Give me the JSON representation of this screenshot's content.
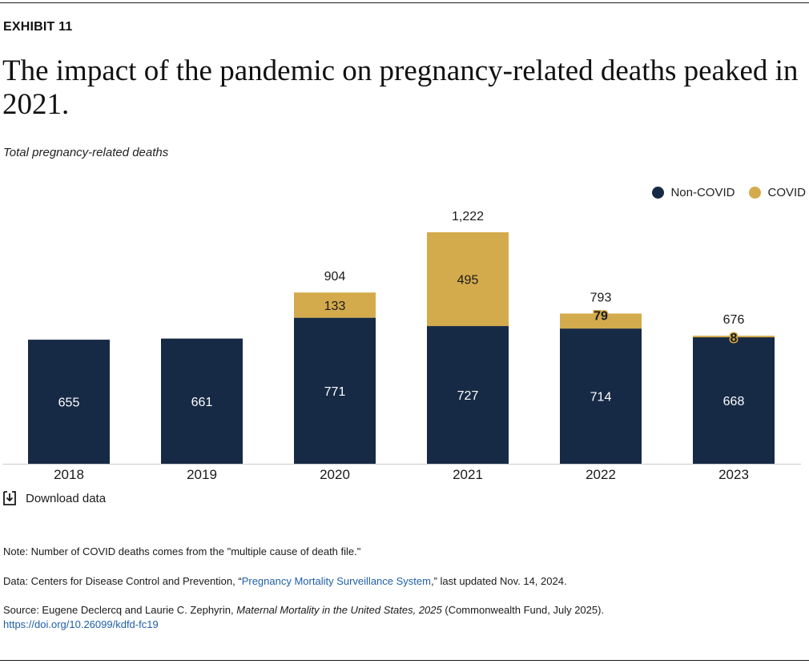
{
  "exhibit_label": "EXHIBIT 11",
  "title": "The impact of the pandemic on pregnancy-related deaths peaked in 2021.",
  "subtitle": "Total pregnancy-related deaths",
  "download_label": "Download data",
  "colors": {
    "non_covid": "#172a45",
    "covid": "#d4ab4c",
    "axis": "#cccccc",
    "link": "#1f5fa8"
  },
  "chart_data": {
    "type": "bar",
    "stacked": true,
    "title": "The impact of the pandemic on pregnancy-related deaths peaked in 2021.",
    "ylabel": "Total pregnancy-related deaths",
    "xlabel": "",
    "categories": [
      "2018",
      "2019",
      "2020",
      "2021",
      "2022",
      "2023"
    ],
    "series": [
      {
        "name": "Non-COVID",
        "values": [
          655,
          661,
          771,
          727,
          714,
          668
        ]
      },
      {
        "name": "COVID",
        "values": [
          null,
          null,
          133,
          495,
          79,
          8
        ]
      }
    ],
    "totals": [
      null,
      null,
      "904",
      "1,222",
      "793",
      "676"
    ],
    "ylim": [
      0,
      1222
    ],
    "grid": false,
    "legend": "top-right"
  },
  "footnotes": {
    "note": "Note: Number of COVID deaths comes from the \"multiple cause of death file.\"",
    "data_prefix": "Data: Centers for Disease Control and Prevention, “",
    "data_link": "Pregnancy Mortality Surveillance System",
    "data_suffix": ",” last updated Nov. 14, 2024.",
    "source_prefix": "Source: Eugene Declercq and Laurie C. Zephyrin, ",
    "source_title": "Maternal Mortality in the United States, 2025",
    "source_suffix": " (Commonwealth Fund, July 2025).",
    "doi": "https://doi.org/10.26099/kdfd-fc19"
  }
}
